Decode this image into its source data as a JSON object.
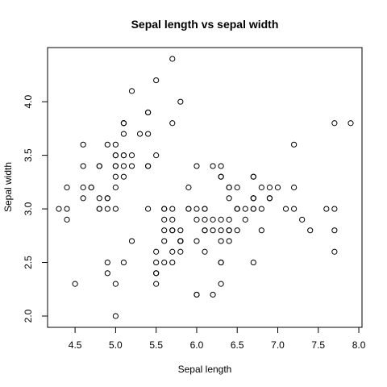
{
  "chart_data": {
    "type": "scatter",
    "title": "Sepal length vs sepal width",
    "xlabel": "Sepal length",
    "ylabel": "Sepal width",
    "xlim": [
      4.3,
      7.9
    ],
    "ylim": [
      2.0,
      4.4
    ],
    "x_ticks": [
      4.5,
      5.0,
      5.5,
      6.0,
      6.5,
      7.0,
      7.5,
      8.0
    ],
    "x_tick_labels": [
      "4.5",
      "5.0",
      "5.5",
      "6.0",
      "6.5",
      "7.0",
      "7.5",
      "8.0"
    ],
    "y_ticks": [
      2.0,
      2.5,
      3.0,
      3.5,
      4.0
    ],
    "y_tick_labels": [
      "2.0",
      "2.5",
      "3.0",
      "3.5",
      "4.0"
    ],
    "grid": false,
    "marker": "open-circle",
    "x": [
      5.1,
      4.9,
      4.7,
      4.6,
      5.0,
      5.4,
      4.6,
      5.0,
      4.4,
      4.9,
      5.4,
      4.8,
      4.8,
      4.3,
      5.8,
      5.7,
      5.4,
      5.1,
      5.7,
      5.1,
      5.4,
      5.1,
      4.6,
      5.1,
      4.8,
      5.0,
      5.0,
      5.2,
      5.2,
      4.7,
      4.8,
      5.4,
      5.2,
      5.5,
      4.9,
      5.0,
      5.5,
      4.9,
      4.4,
      5.1,
      5.0,
      4.5,
      4.4,
      5.0,
      5.1,
      4.8,
      5.1,
      4.6,
      5.3,
      5.0,
      7.0,
      6.4,
      6.9,
      5.5,
      6.5,
      5.7,
      6.3,
      4.9,
      6.6,
      5.2,
      5.0,
      5.9,
      6.0,
      6.1,
      5.6,
      6.7,
      5.6,
      5.8,
      6.2,
      5.6,
      5.9,
      6.1,
      6.3,
      6.1,
      6.4,
      6.6,
      6.8,
      6.7,
      6.0,
      5.7,
      5.5,
      5.5,
      5.8,
      6.0,
      5.4,
      6.0,
      6.7,
      6.3,
      5.6,
      5.5,
      5.5,
      6.1,
      5.8,
      5.0,
      5.6,
      5.7,
      5.7,
      6.2,
      5.1,
      5.7,
      6.3,
      5.8,
      7.1,
      6.3,
      6.5,
      7.6,
      4.9,
      7.3,
      6.7,
      7.2,
      6.5,
      6.4,
      6.8,
      5.7,
      5.8,
      6.4,
      6.5,
      7.7,
      7.7,
      6.0,
      6.9,
      5.6,
      7.7,
      6.3,
      6.7,
      7.2,
      6.2,
      6.1,
      6.4,
      7.2,
      7.4,
      7.9,
      6.4,
      6.3,
      6.1,
      7.7,
      6.3,
      6.4,
      6.0,
      6.9,
      6.7,
      6.9,
      5.8,
      6.8,
      6.7,
      6.7,
      6.3,
      6.5,
      6.2,
      5.9
    ],
    "y": [
      3.5,
      3.0,
      3.2,
      3.1,
      3.6,
      3.9,
      3.4,
      3.4,
      2.9,
      3.1,
      3.7,
      3.4,
      3.0,
      3.0,
      4.0,
      4.4,
      3.9,
      3.5,
      3.8,
      3.8,
      3.4,
      3.7,
      3.6,
      3.3,
      3.4,
      3.0,
      3.4,
      3.5,
      3.4,
      3.2,
      3.1,
      3.4,
      4.1,
      4.2,
      3.1,
      3.2,
      3.5,
      3.6,
      3.0,
      3.4,
      3.5,
      2.3,
      3.2,
      3.5,
      3.8,
      3.0,
      3.8,
      3.2,
      3.7,
      3.3,
      3.2,
      3.2,
      3.1,
      2.3,
      2.8,
      2.8,
      3.3,
      2.4,
      2.9,
      2.7,
      2.0,
      3.0,
      2.2,
      2.9,
      2.9,
      3.1,
      3.0,
      2.7,
      2.2,
      2.5,
      3.2,
      2.8,
      2.5,
      2.8,
      2.9,
      3.0,
      2.8,
      3.0,
      2.9,
      2.6,
      2.4,
      2.4,
      2.7,
      2.7,
      3.0,
      3.4,
      3.1,
      2.3,
      3.0,
      2.5,
      2.6,
      3.0,
      2.6,
      2.3,
      2.7,
      3.0,
      2.9,
      2.9,
      2.5,
      2.8,
      3.3,
      2.7,
      3.0,
      2.9,
      3.0,
      3.0,
      2.5,
      2.9,
      2.5,
      3.6,
      3.2,
      2.7,
      3.0,
      2.5,
      2.8,
      3.2,
      3.0,
      3.8,
      2.6,
      2.2,
      3.2,
      2.8,
      2.8,
      2.7,
      3.3,
      3.2,
      2.8,
      3.0,
      2.8,
      3.0,
      2.8,
      3.8,
      2.8,
      2.8,
      2.6,
      3.0,
      3.4,
      3.1,
      3.0,
      3.1,
      3.1,
      3.1,
      2.7,
      3.2,
      3.3,
      3.0,
      2.5,
      3.0,
      3.4,
      3.0
    ]
  }
}
